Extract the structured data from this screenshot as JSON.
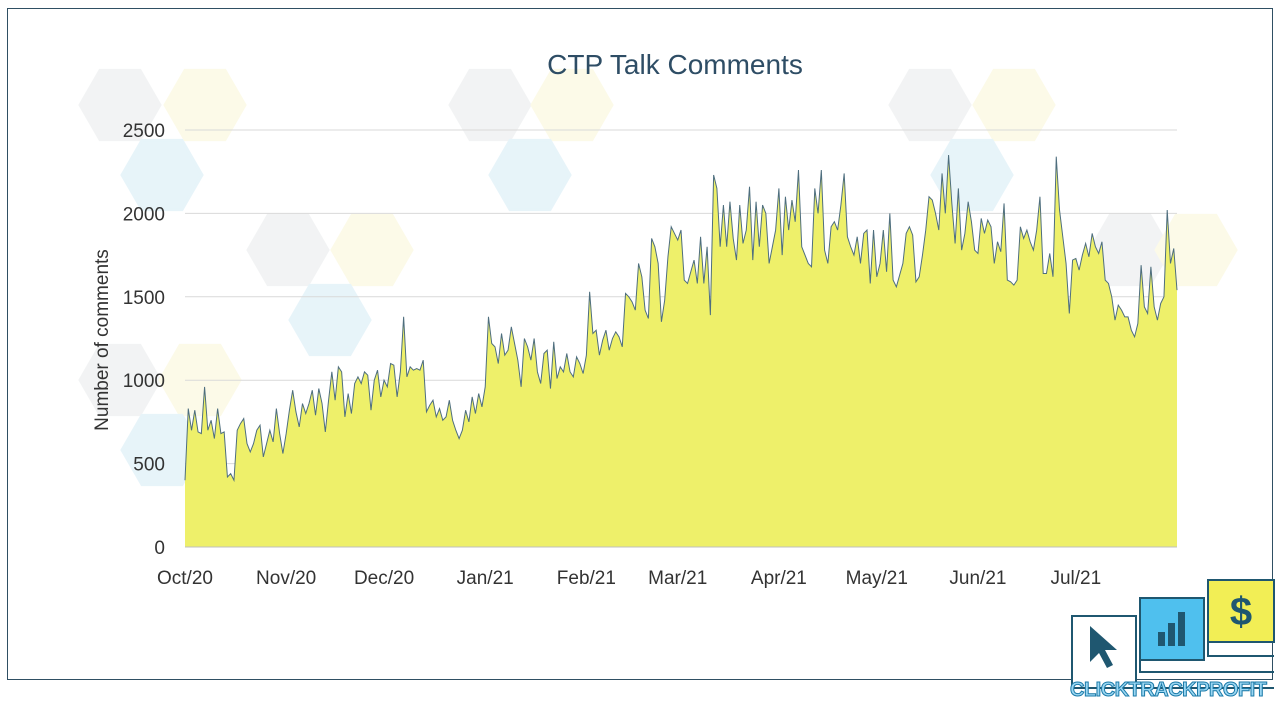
{
  "colors": {
    "area_fill": "#eef06a",
    "line": "#4e6e7e",
    "title": "#2e4d65",
    "brand_dark": "#1f5770",
    "brand_blue": "#4fc0ee",
    "brand_yellow": "#f2ee55"
  },
  "brand": {
    "logo_text": "CLICKTRACKPROFIT",
    "icons": [
      "cursor-icon",
      "bar-chart-icon",
      "dollar-icon"
    ]
  },
  "chart_data": {
    "type": "area",
    "title": "CTP Talk Comments",
    "ylabel": "Number of comments",
    "xlabel": "",
    "ylim": [
      0,
      2500
    ],
    "yticks": [
      0,
      500,
      1000,
      1500,
      2000,
      2500
    ],
    "grid": true,
    "legend": "none",
    "x_start": "Oct/20",
    "x_tick_labels": [
      "Oct/20",
      "Nov/20",
      "Dec/20",
      "Jan/21",
      "Feb/21",
      "Mar/21",
      "Apr/21",
      "May/21",
      "Jun/21",
      "Jul/21"
    ],
    "x_tick_day_index": [
      0,
      31,
      61,
      92,
      123,
      151,
      182,
      212,
      243,
      273
    ],
    "series": [
      {
        "values": [
          400,
          830,
          700,
          820,
          690,
          680,
          960,
          700,
          760,
          650,
          830,
          680,
          690,
          420,
          440,
          400,
          700,
          740,
          770,
          620,
          570,
          620,
          700,
          730,
          540,
          620,
          700,
          630,
          830,
          680,
          560,
          680,
          820,
          940,
          810,
          720,
          860,
          800,
          860,
          940,
          790,
          950,
          860,
          690,
          880,
          1050,
          880,
          1080,
          1050,
          780,
          920,
          800,
          980,
          1020,
          980,
          1050,
          1030,
          820,
          1000,
          1060,
          900,
          1000,
          960,
          1100,
          1090,
          900,
          1050,
          1380,
          1020,
          1080,
          1060,
          1070,
          1060,
          1120,
          810,
          850,
          880,
          780,
          830,
          760,
          780,
          880,
          760,
          700,
          650,
          700,
          820,
          750,
          900,
          800,
          920,
          840,
          960,
          1380,
          1220,
          1200,
          1100,
          1280,
          1150,
          1180,
          1320,
          1220,
          1120,
          960,
          1250,
          1200,
          1120,
          1250,
          1050,
          980,
          1160,
          1180,
          950,
          1230,
          1010,
          1080,
          1050,
          1160,
          1050,
          1020,
          1140,
          1100,
          1040,
          1150,
          1530,
          1280,
          1300,
          1150,
          1240,
          1300,
          1180,
          1250,
          1290,
          1260,
          1200,
          1520,
          1500,
          1470,
          1420,
          1700,
          1620,
          1420,
          1370,
          1850,
          1800,
          1700,
          1350,
          1480,
          1740,
          1920,
          1880,
          1840,
          1900,
          1600,
          1580,
          1650,
          1720,
          1580,
          1860,
          1580,
          1800,
          1390,
          2230,
          2150,
          1800,
          2050,
          1800,
          2070,
          1850,
          1720,
          2050,
          1820,
          1900,
          2160,
          1720,
          2070,
          1800,
          2050,
          2000,
          1700,
          1800,
          1900,
          2150,
          1750,
          2100,
          1900,
          2080,
          1950,
          2260,
          1800,
          1750,
          1700,
          1680,
          2150,
          2000,
          2260,
          1780,
          1700,
          1920,
          1950,
          1900,
          2050,
          2240,
          1860,
          1800,
          1750,
          1860,
          1700,
          1880,
          1900,
          1580,
          1900,
          1620,
          1700,
          1900,
          1650,
          2000,
          1600,
          1560,
          1630,
          1700,
          1880,
          1920,
          1870,
          1590,
          1620,
          1750,
          1900,
          2100,
          2080,
          2000,
          1900,
          2240,
          2000,
          2350,
          2060,
          1820,
          2150,
          1780,
          1880,
          2070,
          1950,
          1780,
          1760,
          1970,
          1880,
          1960,
          1920,
          1700,
          1830,
          1770,
          2060,
          1600,
          1590,
          1570,
          1600,
          1920,
          1850,
          1900,
          1830,
          1780,
          1900,
          2100,
          1640,
          1640,
          1760,
          1620,
          2340,
          2020,
          1860,
          1700,
          1400,
          1720,
          1730,
          1660,
          1750,
          1820,
          1740,
          1880,
          1800,
          1760,
          1830,
          1600,
          1580,
          1500,
          1360,
          1450,
          1420,
          1380,
          1380,
          1300,
          1260,
          1340,
          1690,
          1440,
          1400,
          1680,
          1440,
          1360,
          1460,
          1500,
          2020,
          1700,
          1790,
          1540
        ]
      }
    ]
  }
}
